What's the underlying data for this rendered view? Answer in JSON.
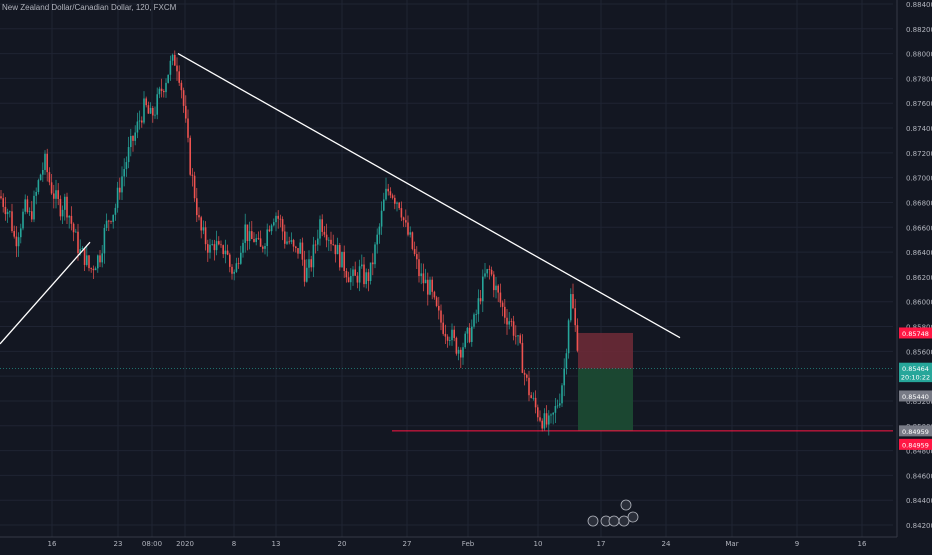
{
  "chart_data": {
    "type": "candlestick",
    "title": "New Zealand Dollar/Canadian Dollar, 120, FXCM",
    "x_tick_labels": [
      "16",
      "23",
      "08:00",
      "2020",
      "8",
      "13",
      "20",
      "27",
      "Feb",
      "10",
      "17",
      "24",
      "Mar",
      "9",
      "16"
    ],
    "y_tick_labels": [
      "0.88400",
      "0.88200",
      "0.88000",
      "0.87800",
      "0.87600",
      "0.87400",
      "0.87200",
      "0.87000",
      "0.86800",
      "0.86600",
      "0.86400",
      "0.86200",
      "0.86000",
      "0.85800",
      "0.85600",
      "0.85400",
      "0.85200",
      "0.85000",
      "0.84800",
      "0.84600",
      "0.84400",
      "0.84200"
    ],
    "ylim": [
      0.8419,
      0.8842
    ],
    "grid": true,
    "price_path_x": [
      0,
      5,
      10,
      15,
      20,
      25,
      30,
      35,
      40,
      45,
      50,
      55,
      60,
      65,
      70,
      75,
      80,
      85,
      90,
      95,
      100,
      105,
      110,
      115,
      120,
      125,
      130,
      135,
      140,
      145,
      150,
      155,
      160,
      165,
      170,
      175,
      178,
      182,
      186,
      190,
      195,
      200,
      205,
      210,
      215,
      220,
      225,
      230,
      235,
      240,
      245,
      250,
      255,
      260,
      265,
      270,
      275,
      280,
      285,
      290,
      295,
      300,
      305,
      310,
      315,
      320,
      325,
      330,
      335,
      340,
      345,
      350,
      355,
      360,
      365,
      370,
      375,
      380,
      385,
      390,
      395,
      400,
      405,
      410,
      415,
      420,
      425,
      430,
      435,
      440,
      445,
      450,
      455,
      460,
      465,
      470,
      475,
      480,
      485,
      490,
      495,
      500,
      505,
      510,
      515,
      520,
      525,
      530,
      535,
      540,
      545,
      550,
      555,
      560,
      565,
      568,
      571,
      575,
      578
    ],
    "price_path_y": [
      0.8685,
      0.8678,
      0.867,
      0.8648,
      0.8662,
      0.8675,
      0.8668,
      0.8682,
      0.8702,
      0.8712,
      0.8695,
      0.8684,
      0.8676,
      0.8681,
      0.8668,
      0.8652,
      0.864,
      0.8636,
      0.8625,
      0.8632,
      0.8638,
      0.8658,
      0.867,
      0.8675,
      0.8695,
      0.871,
      0.8724,
      0.8735,
      0.8748,
      0.8758,
      0.8748,
      0.8755,
      0.8768,
      0.8778,
      0.879,
      0.8795,
      0.879,
      0.877,
      0.874,
      0.871,
      0.8685,
      0.8658,
      0.865,
      0.8642,
      0.8648,
      0.8638,
      0.8645,
      0.8628,
      0.8622,
      0.8645,
      0.866,
      0.8648,
      0.8652,
      0.864,
      0.8652,
      0.8665,
      0.8672,
      0.8665,
      0.865,
      0.8648,
      0.8638,
      0.8645,
      0.8622,
      0.8628,
      0.8645,
      0.8665,
      0.866,
      0.8652,
      0.8645,
      0.8635,
      0.8628,
      0.862,
      0.8618,
      0.8625,
      0.8618,
      0.8622,
      0.8642,
      0.8662,
      0.8685,
      0.8692,
      0.8684,
      0.868,
      0.866,
      0.865,
      0.8635,
      0.862,
      0.8615,
      0.861,
      0.8595,
      0.8585,
      0.8578,
      0.8575,
      0.8565,
      0.8562,
      0.8568,
      0.8575,
      0.8585,
      0.8605,
      0.862,
      0.8625,
      0.8612,
      0.86,
      0.859,
      0.8585,
      0.8575,
      0.856,
      0.854,
      0.8525,
      0.8515,
      0.8508,
      0.8502,
      0.85,
      0.8512,
      0.8525,
      0.855,
      0.8585,
      0.8605,
      0.858,
      0.8565
    ]
  },
  "axis_tags": [
    {
      "label": "0.85748",
      "value": 0.85748,
      "color": "#ff1744"
    },
    {
      "label": "0.85464",
      "value": 0.85464,
      "color": "#26a69a"
    },
    {
      "label": "20:10:22",
      "value": 0.85396,
      "color": "#26a69a"
    },
    {
      "label": "0.85440",
      "value": 0.8524,
      "color": "#787b86"
    },
    {
      "label": "0.84959",
      "value": 0.84959,
      "color": "#787b86"
    },
    {
      "label": "0.84959",
      "value": 0.8485,
      "color": "#ff1744"
    }
  ],
  "colors": {
    "background": "#131722",
    "grid": "#1f2433",
    "up": "#26a69a",
    "down": "#ef5350",
    "trendline": "#ffffff",
    "stop_zone": "#6b2a36",
    "target_zone": "#1b4a33",
    "hline": "#ff1744"
  }
}
